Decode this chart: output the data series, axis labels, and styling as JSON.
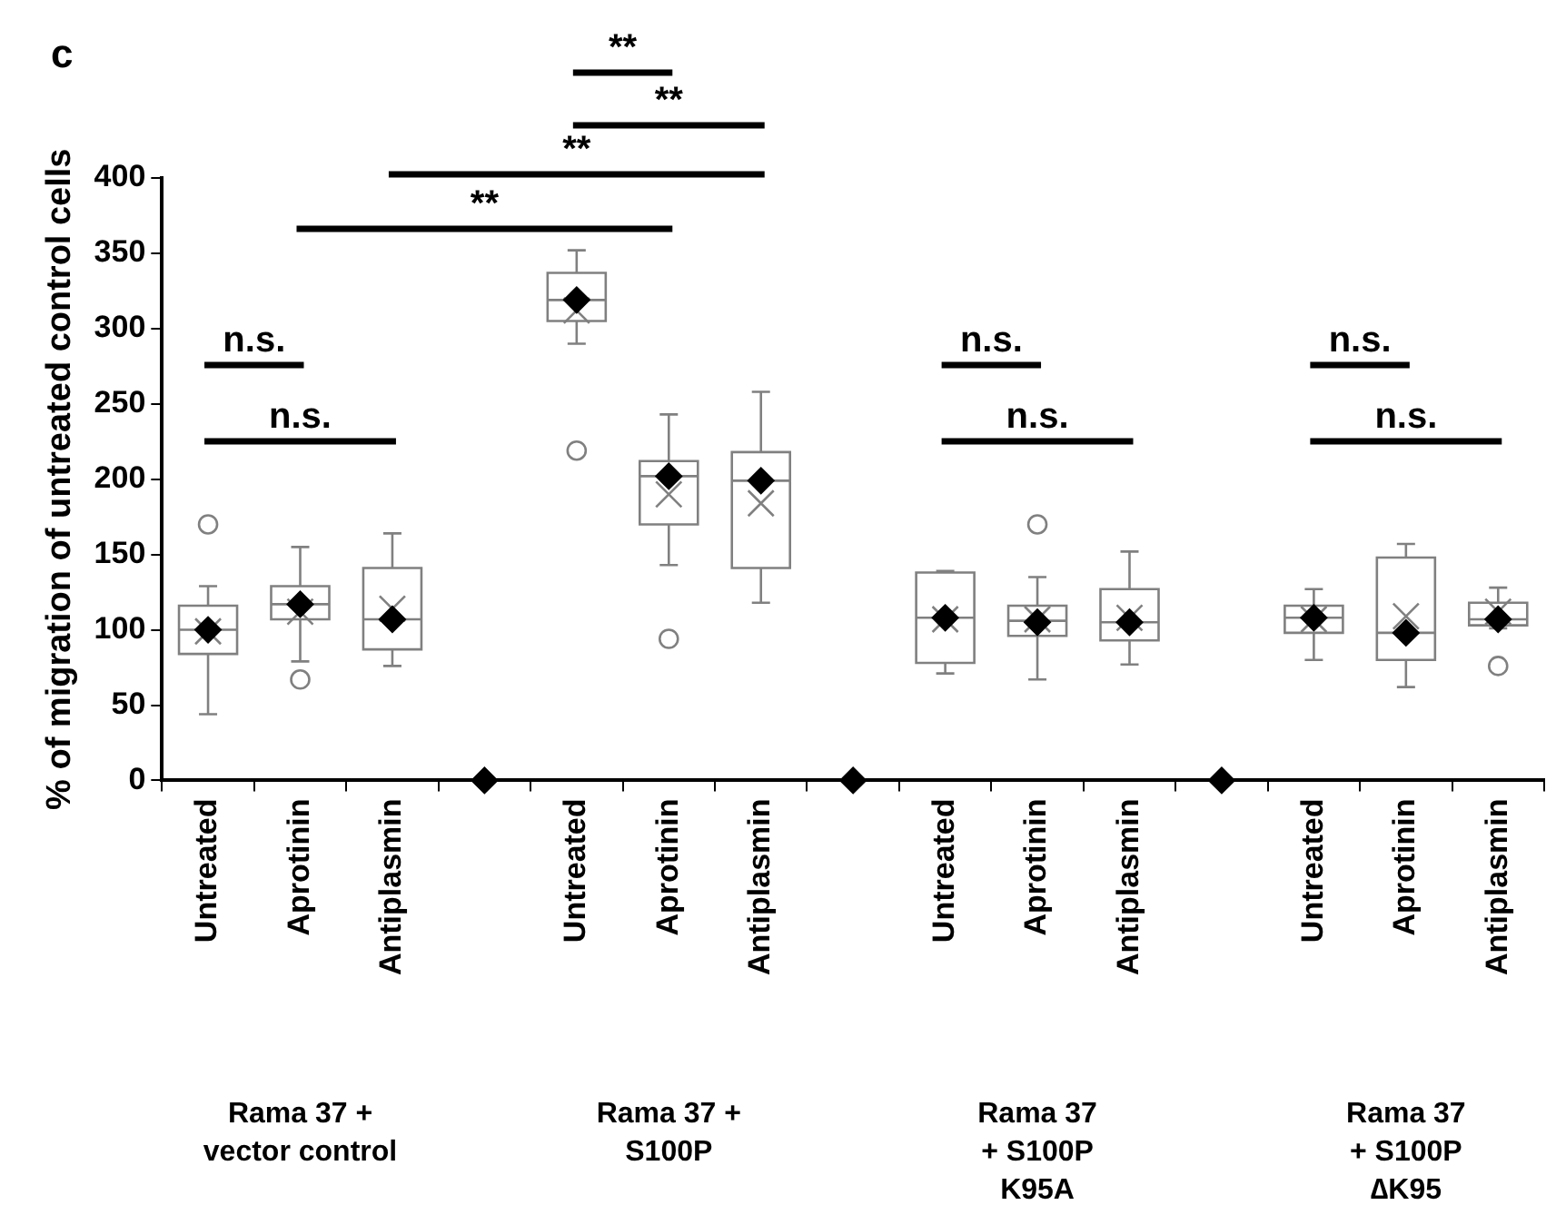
{
  "chart_data": {
    "type": "box",
    "title": "c",
    "ylabel": "% of migration of untreated control cells",
    "color": "#808080",
    "categories": [
      "Untreated",
      "Aprotinin",
      "Antiplasmin",
      null,
      "Untreated",
      "Aprotinin",
      "Antiplasmin",
      null,
      "Untreated",
      "Aprotinin",
      "Antiplasmin",
      null,
      "Untreated",
      "Aprotinin",
      "Antiplasmin"
    ],
    "boxes": [
      {
        "low": 44,
        "q1": 84,
        "median": 100,
        "q3": 116,
        "high": 129,
        "mean": 99,
        "outliers": [
          170
        ]
      },
      {
        "low": 79,
        "q1": 107,
        "median": 117,
        "q3": 129,
        "high": 155,
        "mean": 112,
        "outliers": [
          67
        ]
      },
      {
        "low": 76,
        "q1": 87,
        "median": 107,
        "q3": 141,
        "high": 164,
        "mean": 114
      },
      null,
      {
        "low": 290,
        "q1": 305,
        "median": 319,
        "q3": 337,
        "high": 352,
        "mean": 312,
        "outliers": [
          219
        ]
      },
      {
        "low": 143,
        "q1": 170,
        "median": 202,
        "q3": 212,
        "high": 243,
        "mean": 190,
        "outliers": [
          94
        ]
      },
      {
        "low": 118,
        "q1": 141,
        "median": 199,
        "q3": 218,
        "high": 258,
        "mean": 184
      },
      null,
      {
        "low": 71,
        "q1": 78,
        "median": 108,
        "q3": 138,
        "high": 139,
        "mean": 107
      },
      {
        "low": 67,
        "q1": 96,
        "median": 106,
        "q3": 116,
        "high": 135,
        "mean": 107,
        "outliers": [
          170
        ]
      },
      {
        "low": 77,
        "q1": 93,
        "median": 105,
        "q3": 127,
        "high": 152,
        "mean": 108
      },
      null,
      {
        "low": 80,
        "q1": 98,
        "median": 108,
        "q3": 116,
        "high": 127,
        "mean": 107
      },
      {
        "low": 62,
        "q1": 80,
        "median": 98,
        "q3": 148,
        "high": 157,
        "mean": 109
      },
      {
        "low": 101,
        "q1": 103,
        "median": 107,
        "q3": 118,
        "high": 128,
        "mean": 112,
        "outliers": [
          76
        ]
      }
    ],
    "series": [
      {
        "type": "scatter",
        "marker": "diamond",
        "color": "#000000",
        "values": [
          100,
          117,
          107,
          0,
          319,
          202,
          199,
          0,
          108,
          105,
          105,
          0,
          108,
          98,
          107
        ]
      }
    ],
    "ylim": [
      0,
      400
    ],
    "yticks": [
      0,
      50,
      100,
      150,
      200,
      250,
      300,
      350,
      400
    ],
    "grid": false,
    "legend": false,
    "annotations": [
      "**",
      "**",
      "**",
      "**",
      "n.s.",
      "n.s.",
      "n.s.",
      "n.s.",
      "n.s.",
      "n.s.",
      "Rama 37 +\nvector control",
      "Rama 37 +\nS100P",
      "Rama 37\n+ S100P\nK95A",
      "Rama 37\n+ S100P\n∆K95"
    ]
  }
}
